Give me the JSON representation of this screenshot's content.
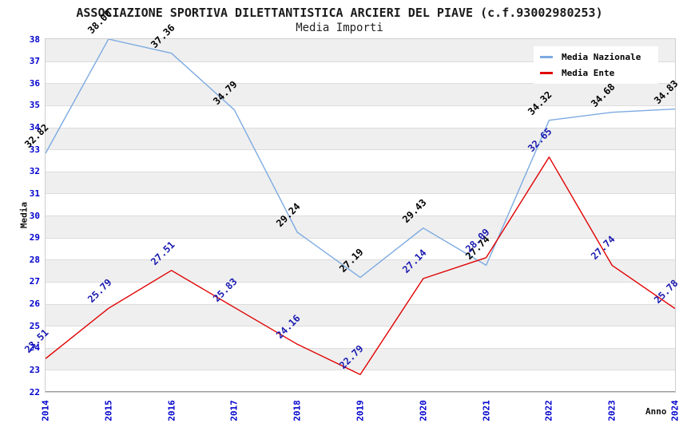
{
  "header": {
    "title": "ASSOCIAZIONE SPORTIVA DILETTANTISTICA ARCIERI DEL PIAVE (c.f.93002980253)",
    "subtitle": "Media Importi"
  },
  "colors": {
    "nazionale_line": "#7daae1",
    "ente_line": "#e00000",
    "axis_tick_text": "#0000cc",
    "nazionale_label_text": "#000000",
    "ente_label_text": "#1a1ab0",
    "band_gray": "#efefef",
    "band_white": "#ffffff",
    "gridline": "#dcdcdc",
    "plot_border": "#cfcfcf"
  },
  "chart_data": {
    "type": "line",
    "title": "ASSOCIAZIONE SPORTIVA DILETTANTISTICA ARCIERI DEL PIAVE (c.f.93002980253)",
    "subtitle": "Media Importi",
    "xlabel": "Anno",
    "ylabel": "Media",
    "categories": [
      "2014",
      "2015",
      "2016",
      "2017",
      "2018",
      "2019",
      "2020",
      "2021",
      "2022",
      "2023",
      "2024"
    ],
    "ylim": [
      22,
      38
    ],
    "ytick_step": 1,
    "grid": "horizontal-striped-bands",
    "legend_position": "top-right",
    "value_labels": "rotated 45deg, two decimals",
    "series": [
      {
        "name": "Media Nazionale",
        "color": "#7daae1",
        "label_color": "#000000",
        "values": [
          32.82,
          38.0,
          37.36,
          34.79,
          29.24,
          27.19,
          29.43,
          27.74,
          34.32,
          34.68,
          34.83
        ]
      },
      {
        "name": "Media Ente",
        "color": "#e00000",
        "label_color": "#1a1ab0",
        "values": [
          23.51,
          25.79,
          27.51,
          25.83,
          24.16,
          22.79,
          27.14,
          28.09,
          32.65,
          27.74,
          25.78
        ]
      }
    ]
  }
}
